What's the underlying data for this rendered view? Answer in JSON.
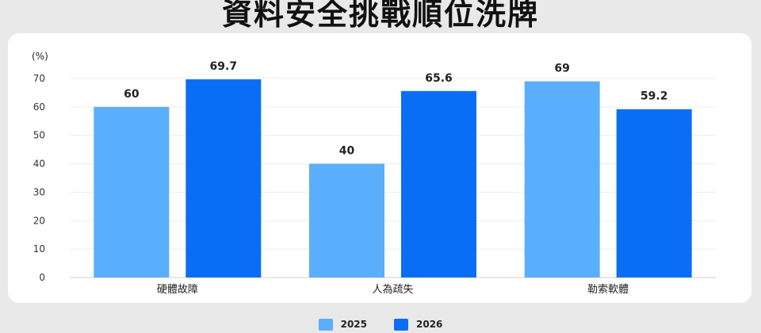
{
  "chart_data": {
    "type": "bar",
    "title": "資料安全挑戰順位洗牌",
    "ylabel": "(%)",
    "xlabel": "",
    "ylim": [
      0,
      70
    ],
    "yticks": [
      0,
      10,
      20,
      30,
      40,
      50,
      60,
      70
    ],
    "categories": [
      "硬體故障",
      "人為疏失",
      "勒索軟體"
    ],
    "series": [
      {
        "name": "2025",
        "values": [
          60,
          40,
          69
        ],
        "labels": [
          "60",
          "40",
          "69"
        ],
        "color": "#5aaefc"
      },
      {
        "name": "2026",
        "values": [
          69.7,
          65.6,
          59.2
        ],
        "labels": [
          "69.7",
          "65.6",
          "59.2"
        ],
        "color": "#0a6ef5"
      }
    ],
    "grid": true,
    "legend_position": "bottom-center"
  }
}
